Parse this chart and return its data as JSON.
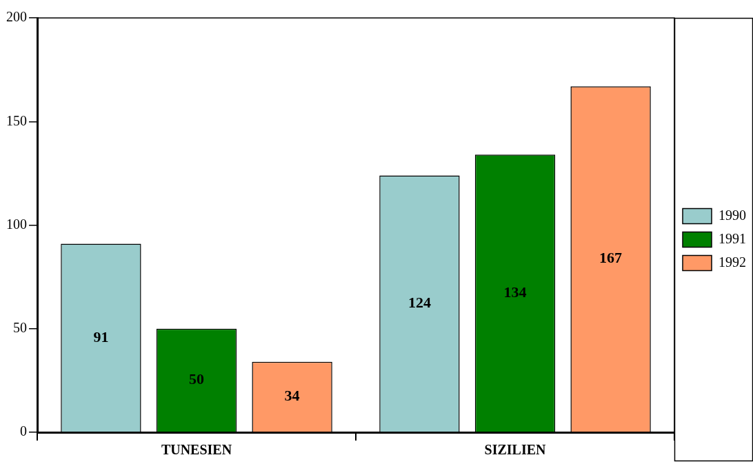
{
  "chart_data": {
    "type": "bar",
    "categories": [
      "TUNESIEN",
      "SIZILIEN"
    ],
    "series": [
      {
        "name": "1990",
        "color": "#99cccc",
        "values": [
          91,
          124
        ]
      },
      {
        "name": "1991",
        "color": "#008000",
        "values": [
          50,
          134
        ]
      },
      {
        "name": "1992",
        "color": "#ff9966",
        "values": [
          34,
          167
        ]
      }
    ],
    "ylim": [
      0,
      200
    ],
    "yticks": [
      0,
      50,
      100,
      150,
      200
    ],
    "grid": false,
    "legend": "right",
    "data_labels": true
  }
}
